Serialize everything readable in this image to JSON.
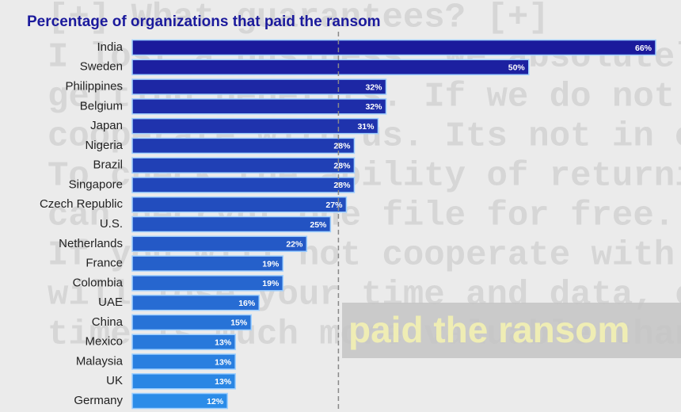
{
  "background": {
    "lines": [
      "[+] What guarantees? [+]",
      "I lost a business. We absolutely",
      "getting benefits. If we do not do",
      "cooperate with us. Its not in our",
      "To check the ability of returning",
      "can decrypt one file for free. Tha",
      "If you will not cooperate with our",
      "will lose your time and data, cause",
      "time is much more valuable than mo"
    ],
    "banner": "paid the ransom"
  },
  "chart_data": {
    "type": "hbar",
    "title": "Percentage of organizations that paid the ransom",
    "categories": [
      "India",
      "Sweden",
      "Philippines",
      "Belgium",
      "Japan",
      "Nigeria",
      "Brazil",
      "Singapore",
      "Czech Republic",
      "U.S.",
      "Netherlands",
      "France",
      "Colombia",
      "UAE",
      "China",
      "Mexico",
      "Malaysia",
      "UK",
      "Germany"
    ],
    "values": [
      66,
      50,
      32,
      32,
      31,
      28,
      28,
      28,
      27,
      25,
      22,
      19,
      19,
      16,
      15,
      13,
      13,
      13,
      12
    ],
    "value_labels": [
      "66%",
      "50%",
      "32%",
      "32%",
      "31%",
      "28%",
      "28%",
      "28%",
      "27%",
      "25%",
      "22%",
      "19%",
      "19%",
      "16%",
      "15%",
      "13%",
      "13%",
      "13%",
      "12%"
    ],
    "gradient": [
      "#1b1a9c",
      "#2b8ce8"
    ],
    "xlim": [
      0,
      66
    ],
    "reference_line": 26
  }
}
